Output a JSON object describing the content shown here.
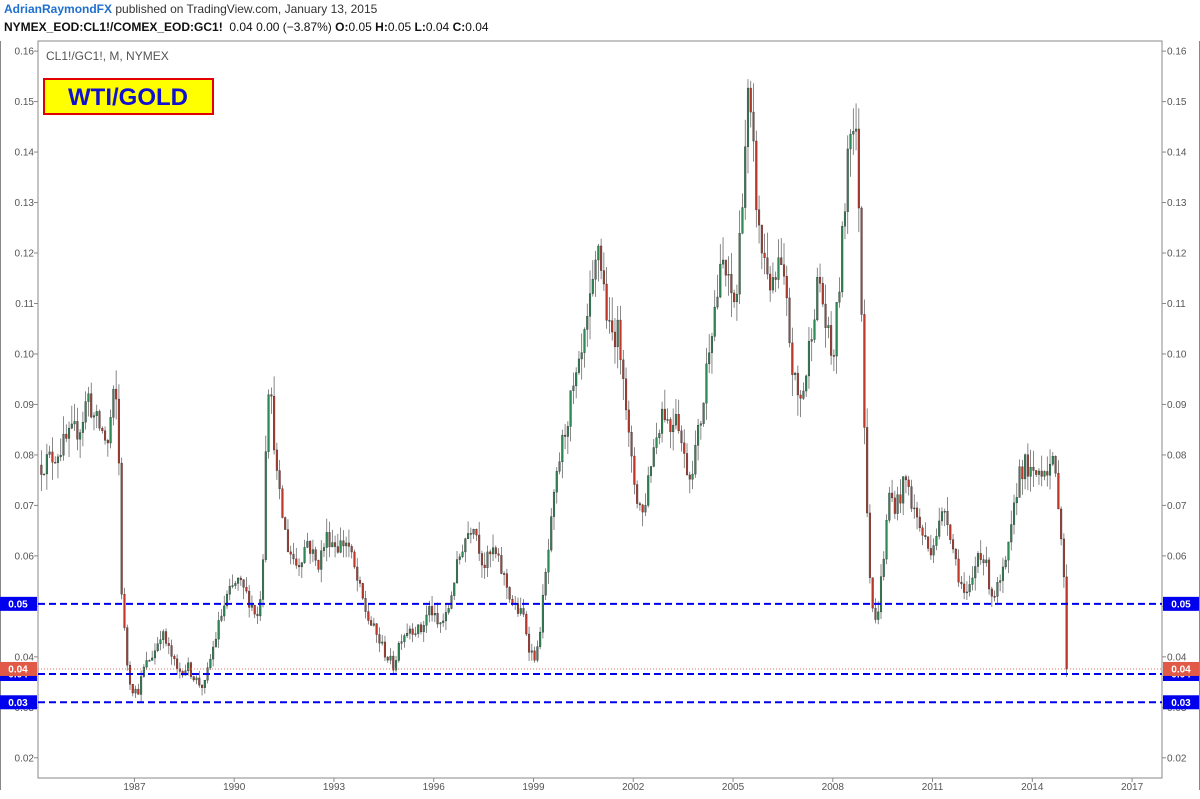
{
  "header": {
    "author": "AdrianRaymondFX",
    "published": "published on TradingView.com, January 13, 2015",
    "symbol": "NYMEX_EOD:CL1!/COMEX_EOD:GC1!",
    "change": "0.04 0.00 (−3.87%)",
    "o_label": "O:",
    "o_value": "0.05",
    "h_label": "H:",
    "h_value": "0.05",
    "l_label": "L:",
    "l_value": "0.04",
    "c_label": "C:",
    "c_value": "0.04"
  },
  "chart_data": {
    "type": "candlestick",
    "symbol_label": "CL1!/GC1!, M, NYMEX",
    "title": "WTI/GOLD",
    "x_range": [
      1984.1,
      2017.9
    ],
    "ylim": [
      0.016,
      0.162
    ],
    "x_ticks": [
      "1987",
      "1990",
      "1993",
      "1996",
      "1999",
      "2002",
      "2005",
      "2008",
      "2011",
      "2014",
      "2017"
    ],
    "y_ticks": [
      "0.02",
      "0.03",
      "0.04",
      "0.05",
      "0.06",
      "0.07",
      "0.08",
      "0.09",
      "0.10",
      "0.11",
      "0.12",
      "0.13",
      "0.14",
      "0.15",
      "0.16"
    ],
    "up_color": "#2e8b57",
    "down_color": "#c0392b",
    "grid": false,
    "horizontal_lines": [
      {
        "value": 0.0505,
        "label": "0.05",
        "color": "#0000ee",
        "style": "dashed"
      },
      {
        "value": 0.0366,
        "label": "0.04",
        "color": "#0000ee",
        "style": "dashed"
      },
      {
        "value": 0.031,
        "label": "0.03",
        "color": "#0000ee",
        "style": "dashed"
      }
    ],
    "last_price": {
      "value": 0.0376,
      "label": "0.04",
      "color": "#e05a47"
    },
    "anchors": [
      [
        1984.2,
        0.078
      ],
      [
        1984.6,
        0.08
      ],
      [
        1985.0,
        0.083
      ],
      [
        1985.4,
        0.086
      ],
      [
        1985.6,
        0.092
      ],
      [
        1985.8,
        0.087
      ],
      [
        1986.0,
        0.085
      ],
      [
        1986.2,
        0.082
      ],
      [
        1986.35,
        0.091
      ],
      [
        1986.5,
        0.09
      ],
      [
        1986.6,
        0.055
      ],
      [
        1986.75,
        0.04
      ],
      [
        1986.9,
        0.034
      ],
      [
        1987.1,
        0.033
      ],
      [
        1987.3,
        0.038
      ],
      [
        1987.6,
        0.041
      ],
      [
        1987.8,
        0.045
      ],
      [
        1988.0,
        0.042
      ],
      [
        1988.3,
        0.037
      ],
      [
        1988.6,
        0.038
      ],
      [
        1988.9,
        0.035
      ],
      [
        1989.1,
        0.034
      ],
      [
        1989.3,
        0.04
      ],
      [
        1989.6,
        0.048
      ],
      [
        1989.8,
        0.052
      ],
      [
        1990.1,
        0.055
      ],
      [
        1990.4,
        0.052
      ],
      [
        1990.7,
        0.048
      ],
      [
        1990.85,
        0.056
      ],
      [
        1991.0,
        0.096
      ],
      [
        1991.15,
        0.088
      ],
      [
        1991.3,
        0.074
      ],
      [
        1991.6,
        0.062
      ],
      [
        1991.9,
        0.058
      ],
      [
        1992.2,
        0.063
      ],
      [
        1992.5,
        0.058
      ],
      [
        1992.8,
        0.064
      ],
      [
        1993.1,
        0.062
      ],
      [
        1993.4,
        0.063
      ],
      [
        1993.7,
        0.055
      ],
      [
        1994.0,
        0.048
      ],
      [
        1994.3,
        0.044
      ],
      [
        1994.6,
        0.04
      ],
      [
        1994.8,
        0.038
      ],
      [
        1995.0,
        0.044
      ],
      [
        1995.3,
        0.046
      ],
      [
        1995.6,
        0.045
      ],
      [
        1995.9,
        0.05
      ],
      [
        1996.1,
        0.046
      ],
      [
        1996.4,
        0.048
      ],
      [
        1996.6,
        0.055
      ],
      [
        1996.9,
        0.063
      ],
      [
        1997.2,
        0.067
      ],
      [
        1997.5,
        0.058
      ],
      [
        1997.8,
        0.061
      ],
      [
        1998.1,
        0.056
      ],
      [
        1998.4,
        0.05
      ],
      [
        1998.7,
        0.048
      ],
      [
        1998.9,
        0.041
      ],
      [
        1999.1,
        0.04
      ],
      [
        1999.4,
        0.058
      ],
      [
        1999.6,
        0.07
      ],
      [
        1999.8,
        0.08
      ],
      [
        2000.1,
        0.09
      ],
      [
        2000.4,
        0.097
      ],
      [
        2000.6,
        0.105
      ],
      [
        2000.8,
        0.113
      ],
      [
        2000.95,
        0.122
      ],
      [
        2001.1,
        0.114
      ],
      [
        2001.3,
        0.103
      ],
      [
        2001.5,
        0.105
      ],
      [
        2001.7,
        0.098
      ],
      [
        2001.9,
        0.08
      ],
      [
        2002.1,
        0.072
      ],
      [
        2002.3,
        0.068
      ],
      [
        2002.5,
        0.078
      ],
      [
        2002.7,
        0.084
      ],
      [
        2002.9,
        0.09
      ],
      [
        2003.1,
        0.085
      ],
      [
        2003.3,
        0.09
      ],
      [
        2003.5,
        0.08
      ],
      [
        2003.7,
        0.076
      ],
      [
        2003.9,
        0.082
      ],
      [
        2004.1,
        0.09
      ],
      [
        2004.3,
        0.104
      ],
      [
        2004.5,
        0.111
      ],
      [
        2004.7,
        0.118
      ],
      [
        2004.9,
        0.112
      ],
      [
        2005.1,
        0.11
      ],
      [
        2005.3,
        0.135
      ],
      [
        2005.45,
        0.15
      ],
      [
        2005.6,
        0.14
      ],
      [
        2005.8,
        0.122
      ],
      [
        2006.0,
        0.118
      ],
      [
        2006.2,
        0.112
      ],
      [
        2006.4,
        0.118
      ],
      [
        2006.6,
        0.11
      ],
      [
        2006.8,
        0.096
      ],
      [
        2007.0,
        0.09
      ],
      [
        2007.2,
        0.096
      ],
      [
        2007.4,
        0.108
      ],
      [
        2007.6,
        0.115
      ],
      [
        2007.8,
        0.105
      ],
      [
        2008.0,
        0.098
      ],
      [
        2008.15,
        0.11
      ],
      [
        2008.35,
        0.128
      ],
      [
        2008.5,
        0.148
      ],
      [
        2008.6,
        0.145
      ],
      [
        2008.75,
        0.14
      ],
      [
        2008.9,
        0.1
      ],
      [
        2009.0,
        0.075
      ],
      [
        2009.15,
        0.052
      ],
      [
        2009.3,
        0.046
      ],
      [
        2009.5,
        0.058
      ],
      [
        2009.7,
        0.072
      ],
      [
        2009.9,
        0.07
      ],
      [
        2010.2,
        0.075
      ],
      [
        2010.4,
        0.07
      ],
      [
        2010.6,
        0.066
      ],
      [
        2010.9,
        0.061
      ],
      [
        2011.2,
        0.066
      ],
      [
        2011.4,
        0.07
      ],
      [
        2011.6,
        0.062
      ],
      [
        2011.8,
        0.056
      ],
      [
        2012.0,
        0.051
      ],
      [
        2012.2,
        0.055
      ],
      [
        2012.4,
        0.062
      ],
      [
        2012.6,
        0.058
      ],
      [
        2012.8,
        0.052
      ],
      [
        2013.0,
        0.054
      ],
      [
        2013.2,
        0.058
      ],
      [
        2013.4,
        0.066
      ],
      [
        2013.6,
        0.077
      ],
      [
        2013.8,
        0.078
      ],
      [
        2014.0,
        0.075
      ],
      [
        2014.2,
        0.077
      ],
      [
        2014.4,
        0.078
      ],
      [
        2014.6,
        0.078
      ],
      [
        2014.75,
        0.074
      ],
      [
        2014.85,
        0.066
      ],
      [
        2014.95,
        0.056
      ],
      [
        2015.03,
        0.0376
      ]
    ]
  }
}
